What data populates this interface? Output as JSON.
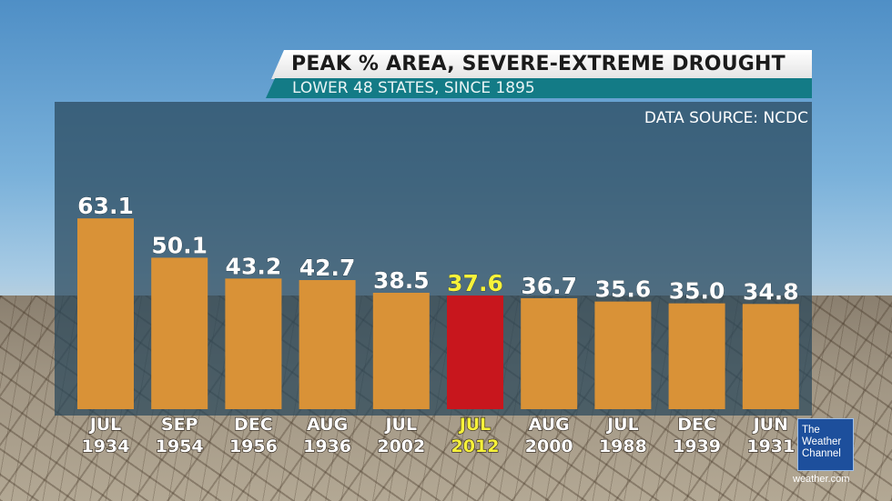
{
  "header": {
    "title": "PEAK % AREA, SEVERE-EXTREME DROUGHT",
    "subtitle": "LOWER 48 STATES, SINCE 1895",
    "source": "DATA SOURCE: NCDC"
  },
  "brand": {
    "logo_line1": "The",
    "logo_line2": "Weather",
    "logo_line3": "Channel",
    "url": "weather.com"
  },
  "colors": {
    "bar": "#d99237",
    "highlight_bar": "#c8161d",
    "highlight_label": "#f7f23a",
    "label": "#ffffff"
  },
  "chart_data": {
    "type": "bar",
    "title": "PEAK % AREA, SEVERE-EXTREME DROUGHT",
    "subtitle": "LOWER 48 STATES, SINCE 1895",
    "categories": [
      [
        "JUL",
        "1934"
      ],
      [
        "SEP",
        "1954"
      ],
      [
        "DEC",
        "1956"
      ],
      [
        "AUG",
        "1936"
      ],
      [
        "JUL",
        "2002"
      ],
      [
        "JUL",
        "2012"
      ],
      [
        "AUG",
        "2000"
      ],
      [
        "JUL",
        "1988"
      ],
      [
        "DEC",
        "1939"
      ],
      [
        "JUN",
        "1931"
      ]
    ],
    "values": [
      63.1,
      50.1,
      43.2,
      42.7,
      38.5,
      37.6,
      36.7,
      35.6,
      35.0,
      34.8
    ],
    "value_labels": [
      "63.1",
      "50.1",
      "43.2",
      "42.7",
      "38.5",
      "37.6",
      "36.7",
      "35.6",
      "35.0",
      "34.8"
    ],
    "highlight_index": 5,
    "ylim": [
      0,
      70
    ],
    "grid": false,
    "legend": "none"
  }
}
